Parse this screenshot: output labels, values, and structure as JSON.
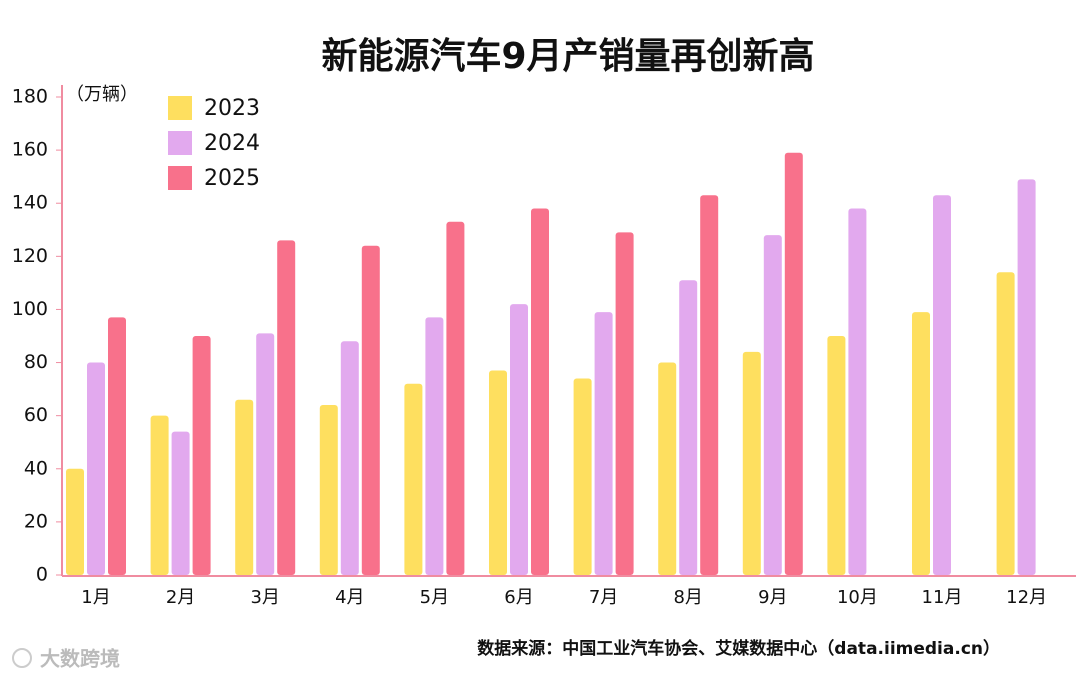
{
  "chart_data": {
    "type": "bar",
    "title": "新能源汽车9月产销量再创新高",
    "y_unit": "（万辆）",
    "source": "数据来源：中国工业汽车协会、艾媒数据中心（data.iimedia.cn）",
    "watermark": "大数跨境",
    "categories": [
      "1月",
      "2月",
      "3月",
      "4月",
      "5月",
      "6月",
      "7月",
      "8月",
      "9月",
      "10月",
      "11月",
      "12月"
    ],
    "series": [
      {
        "name": "2023",
        "color": "#fedf5f",
        "values": [
          40,
          60,
          66,
          64,
          72,
          77,
          74,
          80,
          84,
          90,
          99,
          114
        ]
      },
      {
        "name": "2024",
        "color": "#e2a9ee",
        "values": [
          80,
          54,
          91,
          88,
          97,
          102,
          99,
          111,
          128,
          138,
          143,
          149
        ]
      },
      {
        "name": "2025",
        "color": "#f8718b",
        "values": [
          97,
          90,
          126,
          124,
          133,
          138,
          129,
          143,
          159,
          null,
          null,
          null
        ]
      }
    ],
    "ylim": [
      0,
      180
    ],
    "yticks": [
      0,
      20,
      40,
      60,
      80,
      100,
      120,
      140,
      160,
      180
    ],
    "legend": "top-left"
  }
}
